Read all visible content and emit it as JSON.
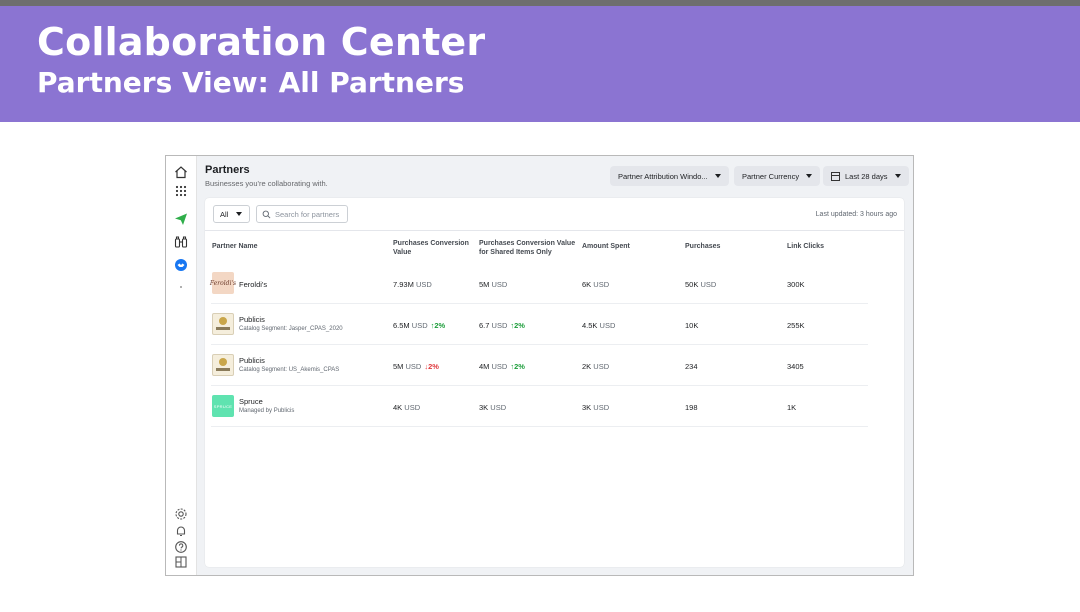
{
  "banner": {
    "title": "Collaboration Center",
    "subtitle": "Partners View: All Partners"
  },
  "rail": {
    "icons": [
      "home-icon",
      "grid-icon",
      "send-icon",
      "binoculars-icon",
      "handshake-icon",
      "gear-icon",
      "bell-icon",
      "help-icon",
      "panel-icon"
    ]
  },
  "page": {
    "title": "Partners",
    "subtitle": "Businesses you're collaborating with."
  },
  "controls": {
    "attribution": "Partner Attribution Windo...",
    "currency": "Partner Currency",
    "date_range": "Last 28 days"
  },
  "toolbar": {
    "filter_value": "All",
    "search_placeholder": "Search for partners",
    "last_updated": "Last updated: 3 hours ago"
  },
  "table": {
    "columns": {
      "partner": "Partner Name",
      "pcv": "Purchases Conversion Value",
      "pcv_shared": "Purchases Conversion Value for Shared Items Only",
      "spent": "Amount Spent",
      "purchases": "Purchases",
      "clicks": "Link Clicks"
    },
    "rows": [
      {
        "name": "Feroldi's",
        "logo_text": "Feroldi's",
        "sub": "",
        "pcv": "7.93M",
        "pcv_unit": "USD",
        "pcv_change": "",
        "pcv_shared": "5M",
        "pcv_shared_unit": "USD",
        "pcv_shared_change": "",
        "spent": "6K",
        "spent_unit": "USD",
        "purchases": "50K",
        "purchases_unit": "USD",
        "clicks": "300K"
      },
      {
        "name": "Publicis",
        "sub": "Catalog Segment: Jasper_CPAS_2020",
        "pcv": "6.5M",
        "pcv_unit": "USD",
        "pcv_change": "↑2%",
        "pcv_shared": "6.7",
        "pcv_shared_unit": "USD",
        "pcv_shared_change": "↑2%",
        "spent": "4.5K",
        "spent_unit": "USD",
        "purchases": "10K",
        "purchases_unit": "",
        "clicks": "255K"
      },
      {
        "name": "Publicis",
        "sub": "Catalog Segment: US_Akemis_CPAS",
        "pcv": "5M",
        "pcv_unit": "USD",
        "pcv_change": "↓2%",
        "pcv_shared": "4M",
        "pcv_shared_unit": "USD",
        "pcv_shared_change": "↑2%",
        "spent": "2K",
        "spent_unit": "USD",
        "purchases": "234",
        "purchases_unit": "",
        "clicks": "3405"
      },
      {
        "name": "Spruce",
        "logo_text": "SPRUCE",
        "sub": "Managed by Publicis",
        "pcv": "4K",
        "pcv_unit": "USD",
        "pcv_change": "",
        "pcv_shared": "3K",
        "pcv_shared_unit": "USD",
        "pcv_shared_change": "",
        "spent": "3K",
        "spent_unit": "USD",
        "purchases": "198",
        "purchases_unit": "",
        "clicks": "1K"
      }
    ]
  },
  "colors": {
    "banner": "#8b74d2",
    "positive": "#1e9e3c",
    "negative": "#e0393e",
    "accent": "#1877f2"
  }
}
